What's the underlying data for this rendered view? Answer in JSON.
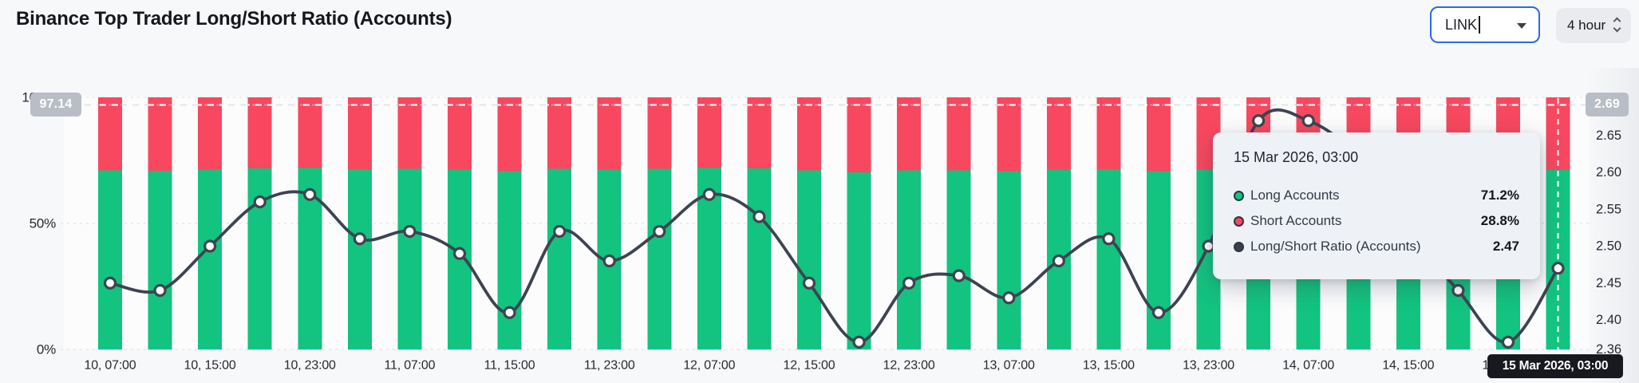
{
  "header": {
    "title": "Binance Top Trader Long/Short Ratio (Accounts)"
  },
  "controls": {
    "symbol_select": {
      "value": "LINK"
    },
    "interval_select": {
      "value": "4 hour"
    }
  },
  "crosshair": {
    "left_axis_badge": "97.14",
    "right_axis_badge": "2.69",
    "x_axis_badge": "15 Mar 2026, 03:00"
  },
  "tooltip": {
    "title": "15 Mar 2026, 03:00",
    "rows": [
      {
        "label": "Long Accounts",
        "value": "71.2%",
        "dot_color": "#13c380"
      },
      {
        "label": "Short Accounts",
        "value": "28.8%",
        "dot_color": "#f7485f"
      },
      {
        "label": "Long/Short Ratio (Accounts)",
        "value": "2.47",
        "dot_color": "#3a404d"
      }
    ]
  },
  "colors": {
    "long_bar": "#13c380",
    "short_bar": "#f7485f",
    "ratio_line": "#3d4451",
    "badge": "#b9bdc5",
    "focus_border": "#2b6be2",
    "grid": "#dfe1e5",
    "background": "#f7f8f9"
  },
  "chart_data": {
    "type": "bar+line",
    "description": "Stacked 100% bars of Long vs Short account share per 4-hour interval, with Long/Short Ratio line plotted on the right axis",
    "bar_series": [
      "Long Accounts",
      "Short Accounts"
    ],
    "line_series": "Long/Short Ratio (Accounts)",
    "left_axis": {
      "ticks": [
        "0%",
        "50%",
        "100%"
      ],
      "min": 0,
      "max": 100
    },
    "right_axis": {
      "ticks": [
        "2.70",
        "2.65",
        "2.60",
        "2.55",
        "2.50",
        "2.45",
        "2.40",
        "2.36"
      ],
      "min": 2.36,
      "max": 2.705
    },
    "x_tick_labels": [
      "10, 07:00",
      "10, 15:00",
      "10, 23:00",
      "11, 07:00",
      "11, 15:00",
      "11, 23:00",
      "12, 07:00",
      "12, 15:00",
      "12, 23:00",
      "13, 07:00",
      "13, 15:00",
      "13, 23:00",
      "14, 07:00",
      "14, 15:00",
      "14, 23:00"
    ],
    "hovered_index": 29,
    "points": [
      {
        "time": "10, 07:00",
        "long_pct": 71.0,
        "short_pct": 29.0,
        "ratio": 2.45
      },
      {
        "time": "10, 11:00",
        "long_pct": 70.9,
        "short_pct": 29.1,
        "ratio": 2.44
      },
      {
        "time": "10, 15:00",
        "long_pct": 71.4,
        "short_pct": 28.6,
        "ratio": 2.5
      },
      {
        "time": "10, 19:00",
        "long_pct": 71.9,
        "short_pct": 28.1,
        "ratio": 2.56
      },
      {
        "time": "10, 23:00",
        "long_pct": 72.0,
        "short_pct": 28.0,
        "ratio": 2.57
      },
      {
        "time": "11, 03:00",
        "long_pct": 71.5,
        "short_pct": 28.5,
        "ratio": 2.51
      },
      {
        "time": "11, 07:00",
        "long_pct": 71.6,
        "short_pct": 28.4,
        "ratio": 2.52
      },
      {
        "time": "11, 11:00",
        "long_pct": 71.3,
        "short_pct": 28.7,
        "ratio": 2.49
      },
      {
        "time": "11, 15:00",
        "long_pct": 70.7,
        "short_pct": 29.3,
        "ratio": 2.41
      },
      {
        "time": "11, 19:00",
        "long_pct": 71.6,
        "short_pct": 28.4,
        "ratio": 2.52
      },
      {
        "time": "11, 23:00",
        "long_pct": 71.3,
        "short_pct": 28.7,
        "ratio": 2.48
      },
      {
        "time": "12, 03:00",
        "long_pct": 71.6,
        "short_pct": 28.4,
        "ratio": 2.52
      },
      {
        "time": "12, 07:00",
        "long_pct": 72.0,
        "short_pct": 28.0,
        "ratio": 2.57
      },
      {
        "time": "12, 11:00",
        "long_pct": 71.8,
        "short_pct": 28.2,
        "ratio": 2.54
      },
      {
        "time": "12, 15:00",
        "long_pct": 71.0,
        "short_pct": 29.0,
        "ratio": 2.45
      },
      {
        "time": "12, 19:00",
        "long_pct": 70.3,
        "short_pct": 29.7,
        "ratio": 2.37
      },
      {
        "time": "12, 23:00",
        "long_pct": 71.0,
        "short_pct": 29.0,
        "ratio": 2.45
      },
      {
        "time": "13, 03:00",
        "long_pct": 71.1,
        "short_pct": 28.9,
        "ratio": 2.46
      },
      {
        "time": "13, 07:00",
        "long_pct": 70.8,
        "short_pct": 29.2,
        "ratio": 2.43
      },
      {
        "time": "13, 11:00",
        "long_pct": 71.3,
        "short_pct": 28.7,
        "ratio": 2.48
      },
      {
        "time": "13, 15:00",
        "long_pct": 71.5,
        "short_pct": 28.5,
        "ratio": 2.51
      },
      {
        "time": "13, 19:00",
        "long_pct": 70.7,
        "short_pct": 29.3,
        "ratio": 2.41
      },
      {
        "time": "13, 23:00",
        "long_pct": 71.4,
        "short_pct": 28.6,
        "ratio": 2.5
      },
      {
        "time": "14, 03:00",
        "long_pct": 72.8,
        "short_pct": 27.2,
        "ratio": 2.67
      },
      {
        "time": "14, 07:00",
        "long_pct": 72.8,
        "short_pct": 27.2,
        "ratio": 2.67
      },
      {
        "time": "14, 11:00",
        "long_pct": 72.4,
        "short_pct": 27.6,
        "ratio": 2.62
      },
      {
        "time": "14, 15:00",
        "long_pct": 71.6,
        "short_pct": 28.4,
        "ratio": 2.52
      },
      {
        "time": "14, 19:00",
        "long_pct": 70.9,
        "short_pct": 29.1,
        "ratio": 2.44
      },
      {
        "time": "14, 23:00",
        "long_pct": 70.3,
        "short_pct": 29.7,
        "ratio": 2.37
      },
      {
        "time": "15, 03:00",
        "long_pct": 71.2,
        "short_pct": 28.8,
        "ratio": 2.47
      }
    ]
  }
}
